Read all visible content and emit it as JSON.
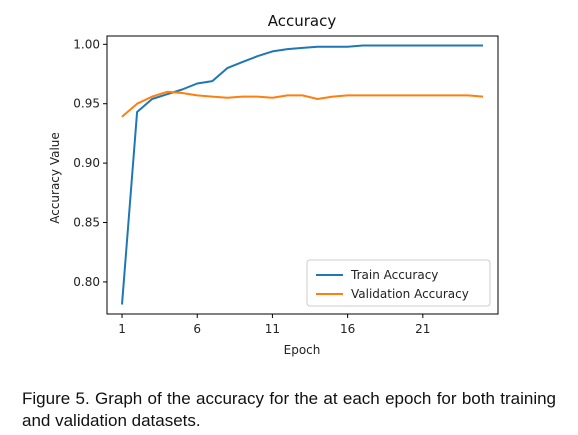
{
  "chart_data": {
    "type": "line",
    "title": "Accuracy",
    "xlabel": "Epoch",
    "ylabel": "Accuracy Value",
    "xlim": [
      0,
      26
    ],
    "ylim": [
      0.773,
      1.007
    ],
    "xticks": [
      1,
      6,
      11,
      16,
      21
    ],
    "yticks": [
      0.8,
      0.85,
      0.9,
      0.95,
      1.0
    ],
    "ytick_labels": [
      "0.80",
      "0.85",
      "0.90",
      "0.95",
      "1.00"
    ],
    "legend_position": "lower-right",
    "series": [
      {
        "name": "Train Accuracy",
        "color": "#1f77b4",
        "x": [
          1,
          2,
          3,
          4,
          5,
          6,
          7,
          8,
          9,
          10,
          11,
          12,
          13,
          14,
          15,
          16,
          17,
          18,
          19,
          20,
          21,
          22,
          23,
          24,
          25
        ],
        "y": [
          0.781,
          0.943,
          0.954,
          0.958,
          0.962,
          0.967,
          0.969,
          0.98,
          0.985,
          0.99,
          0.994,
          0.996,
          0.997,
          0.998,
          0.998,
          0.998,
          0.999,
          0.999,
          0.999,
          0.999,
          0.999,
          0.999,
          0.999,
          0.999,
          0.999
        ]
      },
      {
        "name": "Validation Accuracy",
        "color": "#ff7f0e",
        "x": [
          1,
          2,
          3,
          4,
          5,
          6,
          7,
          8,
          9,
          10,
          11,
          12,
          13,
          14,
          15,
          16,
          17,
          18,
          19,
          20,
          21,
          22,
          23,
          24,
          25
        ],
        "y": [
          0.939,
          0.95,
          0.956,
          0.96,
          0.959,
          0.957,
          0.956,
          0.955,
          0.956,
          0.956,
          0.955,
          0.957,
          0.957,
          0.954,
          0.956,
          0.957,
          0.957,
          0.957,
          0.957,
          0.957,
          0.957,
          0.957,
          0.957,
          0.957,
          0.956
        ]
      }
    ]
  },
  "caption": {
    "label": "Figure 5.",
    "text": " Graph of the accuracy for the at each epoch for both training and validation datasets."
  }
}
